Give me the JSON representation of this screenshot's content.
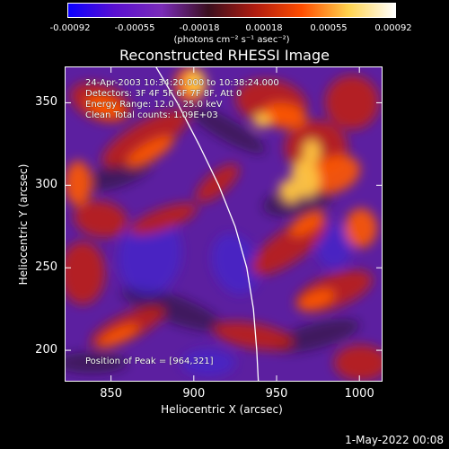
{
  "colorbar": {
    "ticks": [
      "-0.00092",
      "-0.00055",
      "-0.00018",
      "0.00018",
      "0.00055",
      "0.00092"
    ],
    "unit": "(photons cm⁻² s⁻¹ asec⁻²)",
    "colors": [
      "#0b00ff",
      "#5a10d0",
      "#7a2cb8",
      "#3a0f1e",
      "#b01c10",
      "#ff4d00",
      "#ffd24d",
      "#ffffff"
    ]
  },
  "annotations": {
    "time": "24-Apr-2003 10:34:20.000 to 10:38:24.000",
    "detectors": "Detectors: 3F 4F 5F 6F 7F 8F, Att 0",
    "energy": "Energy Range: 12.0 - 25.0 keV",
    "clean": "Clean     Total counts: 1.09E+03",
    "peak": "Position of Peak = [964,321]"
  },
  "footer": "1-May-2022 00:08",
  "chart_data": {
    "type": "heatmap",
    "title": "Reconstructed RHESSI Image",
    "xlabel": "Heliocentric X (arcsec)",
    "ylabel": "Heliocentric Y (arcsec)",
    "xlim": [
      822,
      1014
    ],
    "ylim": [
      181,
      372
    ],
    "xticks": [
      "850",
      "900",
      "950",
      "1000"
    ],
    "yticks": [
      "200",
      "250",
      "300",
      "350"
    ],
    "clim": [
      -0.00092,
      0.00092
    ],
    "peak": [
      964,
      321
    ],
    "limb_curve": [
      [
        877,
        372
      ],
      [
        890,
        350
      ],
      [
        903,
        325
      ],
      [
        915,
        300
      ],
      [
        925,
        275
      ],
      [
        932,
        250
      ],
      [
        936,
        225
      ],
      [
        938,
        200
      ],
      [
        939,
        181
      ]
    ]
  }
}
